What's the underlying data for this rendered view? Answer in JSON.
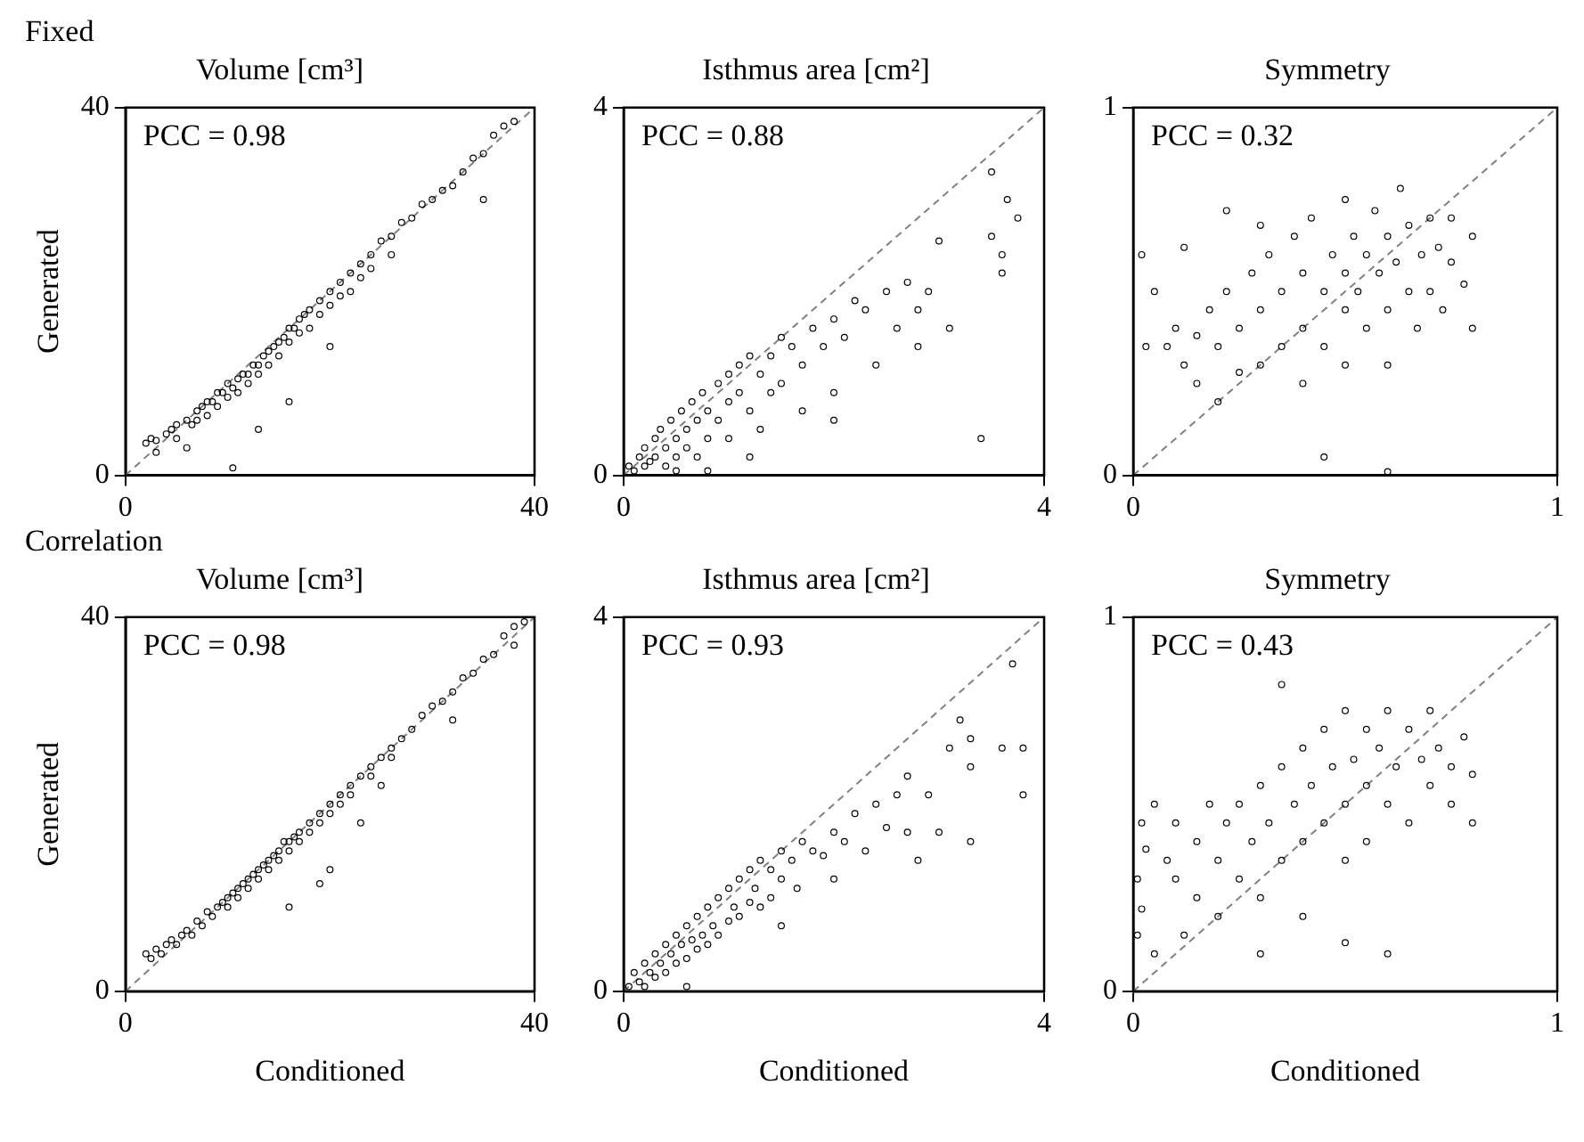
{
  "chart_data": [
    {
      "type": "scatter",
      "subtitle": "Fixed",
      "title": "Volume [cm³]",
      "ylabel": "Generated",
      "xlim": [
        0,
        40
      ],
      "ylim": [
        0,
        40
      ],
      "xticks": [
        0,
        40
      ],
      "yticks": [
        0,
        40
      ],
      "marker": "circle",
      "annotations": [
        "PCC = 0.98"
      ],
      "series": [
        {
          "color": "#000000",
          "x": [
            2,
            2.5,
            3,
            3,
            4,
            4.5,
            5,
            5,
            6,
            6.5,
            7,
            7,
            7.5,
            8,
            8,
            8.5,
            9,
            9,
            9.5,
            10,
            10,
            10.5,
            11,
            11,
            11.5,
            12,
            12,
            12.5,
            13,
            13,
            13.5,
            14,
            14,
            14.5,
            15,
            15,
            15.5,
            16,
            16,
            16.5,
            17,
            17,
            17.5,
            18,
            18,
            19,
            19,
            20,
            20,
            21,
            21,
            22,
            22,
            23,
            23,
            24,
            24,
            25,
            26,
            26,
            27,
            28,
            29,
            30,
            31,
            32,
            33,
            34,
            35,
            36,
            37,
            38,
            35,
            13,
            10.5,
            6,
            16,
            20
          ],
          "values": [
            3.5,
            4,
            3.8,
            2.5,
            4.5,
            5,
            5.5,
            4,
            6,
            5.5,
            7,
            6,
            7.5,
            8,
            6.5,
            8,
            9,
            7.5,
            9,
            10,
            8.5,
            9.5,
            10.5,
            9,
            11,
            11,
            10,
            12,
            12,
            11,
            13,
            13.5,
            12,
            14,
            14.5,
            13,
            15,
            16,
            14.5,
            16,
            17,
            15.5,
            17.5,
            18,
            16,
            19,
            17.5,
            20,
            18.5,
            21,
            19.5,
            22,
            20,
            23,
            21.5,
            24,
            22.5,
            25.5,
            26,
            24,
            27.5,
            28,
            29.5,
            30,
            31,
            31.5,
            33,
            34.5,
            35,
            37,
            38,
            38.5,
            30,
            5,
            0.8,
            3,
            8,
            14
          ]
        },
        {
          "type": "line",
          "color": "#808080",
          "marker": "none",
          "line_style": "dashed",
          "x": [
            0,
            40
          ],
          "values": [
            0,
            40
          ]
        }
      ]
    },
    {
      "type": "scatter",
      "title": "Isthmus area [cm²]",
      "xlim": [
        0,
        4
      ],
      "ylim": [
        0,
        4
      ],
      "xticks": [
        0,
        4
      ],
      "yticks": [
        0,
        4
      ],
      "marker": "circle",
      "annotations": [
        "PCC = 0.88"
      ],
      "series": [
        {
          "color": "#000000",
          "x": [
            0.05,
            0.1,
            0.15,
            0.2,
            0.2,
            0.25,
            0.3,
            0.3,
            0.35,
            0.4,
            0.4,
            0.45,
            0.5,
            0.5,
            0.55,
            0.6,
            0.6,
            0.65,
            0.7,
            0.7,
            0.75,
            0.8,
            0.8,
            0.9,
            0.9,
            1.0,
            1.0,
            1.0,
            1.1,
            1.1,
            1.2,
            1.2,
            1.3,
            1.3,
            1.4,
            1.4,
            1.5,
            1.5,
            1.6,
            1.7,
            1.7,
            1.8,
            1.9,
            2.0,
            2.0,
            2.1,
            2.2,
            2.3,
            2.4,
            2.5,
            2.6,
            2.7,
            2.8,
            2.8,
            2.9,
            3.1,
            3.0,
            3.5,
            3.65,
            3.75,
            3.5,
            3.6,
            3.6,
            3.4,
            1.2,
            0.8,
            0.5,
            2.0
          ],
          "values": [
            0.1,
            0.05,
            0.2,
            0.1,
            0.3,
            0.15,
            0.4,
            0.2,
            0.5,
            0.3,
            0.1,
            0.6,
            0.4,
            0.2,
            0.7,
            0.5,
            0.3,
            0.8,
            0.6,
            0.2,
            0.9,
            0.7,
            0.4,
            1.0,
            0.6,
            1.1,
            0.8,
            0.4,
            1.2,
            0.9,
            1.3,
            0.7,
            1.1,
            0.5,
            1.3,
            0.9,
            1.5,
            1.0,
            1.4,
            1.2,
            0.7,
            1.6,
            1.4,
            1.7,
            0.9,
            1.5,
            1.9,
            1.8,
            1.2,
            2.0,
            1.6,
            2.1,
            1.8,
            1.4,
            2.0,
            1.6,
            2.55,
            3.3,
            3.0,
            2.8,
            2.6,
            2.4,
            2.2,
            0.4,
            0.2,
            0.05,
            0.05,
            0.6
          ]
        },
        {
          "type": "line",
          "color": "#808080",
          "marker": "none",
          "line_style": "dashed",
          "x": [
            0,
            4
          ],
          "values": [
            0,
            4
          ]
        }
      ]
    },
    {
      "type": "scatter",
      "title": "Symmetry",
      "xlim": [
        0,
        1
      ],
      "ylim": [
        0,
        1
      ],
      "xticks": [
        0,
        1
      ],
      "yticks": [
        0,
        1
      ],
      "marker": "circle",
      "annotations": [
        "PCC = 0.32"
      ],
      "series": [
        {
          "color": "#000000",
          "x": [
            0.02,
            0.03,
            0.05,
            0.08,
            0.1,
            0.12,
            0.12,
            0.15,
            0.15,
            0.18,
            0.2,
            0.2,
            0.22,
            0.25,
            0.25,
            0.28,
            0.3,
            0.3,
            0.32,
            0.35,
            0.35,
            0.38,
            0.4,
            0.4,
            0.4,
            0.42,
            0.45,
            0.45,
            0.47,
            0.5,
            0.5,
            0.5,
            0.5,
            0.52,
            0.53,
            0.55,
            0.55,
            0.57,
            0.58,
            0.6,
            0.6,
            0.6,
            0.62,
            0.63,
            0.65,
            0.65,
            0.67,
            0.68,
            0.7,
            0.7,
            0.72,
            0.73,
            0.75,
            0.75,
            0.78,
            0.8,
            0.8,
            0.45,
            0.6,
            0.3,
            0.22
          ],
          "values": [
            0.6,
            0.35,
            0.5,
            0.35,
            0.4,
            0.3,
            0.62,
            0.38,
            0.25,
            0.45,
            0.35,
            0.2,
            0.5,
            0.4,
            0.28,
            0.55,
            0.45,
            0.3,
            0.6,
            0.5,
            0.35,
            0.65,
            0.55,
            0.4,
            0.25,
            0.7,
            0.5,
            0.35,
            0.6,
            0.75,
            0.55,
            0.45,
            0.3,
            0.65,
            0.5,
            0.4,
            0.6,
            0.72,
            0.55,
            0.45,
            0.65,
            0.3,
            0.58,
            0.78,
            0.5,
            0.68,
            0.4,
            0.6,
            0.7,
            0.5,
            0.62,
            0.45,
            0.58,
            0.7,
            0.52,
            0.65,
            0.4,
            0.05,
            0.01,
            0.68,
            0.72
          ]
        },
        {
          "type": "line",
          "color": "#808080",
          "marker": "none",
          "line_style": "dashed",
          "x": [
            0,
            1
          ],
          "values": [
            0,
            1
          ]
        }
      ]
    },
    {
      "type": "scatter",
      "subtitle": "Correlation",
      "title": "Volume [cm³]",
      "xlabel": "Conditioned",
      "ylabel": "Generated",
      "xlim": [
        0,
        40
      ],
      "ylim": [
        0,
        40
      ],
      "xticks": [
        0,
        40
      ],
      "yticks": [
        0,
        40
      ],
      "marker": "circle",
      "annotations": [
        "PCC = 0.98"
      ],
      "series": [
        {
          "color": "#000000",
          "x": [
            2,
            2.5,
            3,
            3.5,
            4,
            4.5,
            5,
            5.5,
            6,
            6.5,
            7,
            7.5,
            8,
            8.5,
            9,
            9.5,
            10,
            10,
            10.5,
            11,
            11,
            11.5,
            12,
            12,
            12.5,
            13,
            13,
            13.5,
            14,
            14,
            14.5,
            15,
            15,
            15.5,
            16,
            16,
            16.5,
            17,
            17,
            18,
            18,
            19,
            19,
            20,
            20,
            21,
            21,
            22,
            22,
            23,
            24,
            24,
            25,
            26,
            26,
            27,
            28,
            29,
            30,
            31,
            32,
            33,
            34,
            35,
            36,
            37,
            38,
            39,
            38,
            16,
            19,
            20,
            23,
            25,
            32
          ],
          "values": [
            4,
            3.5,
            4.5,
            4,
            5,
            5.5,
            5,
            6,
            6.5,
            6,
            7.5,
            7,
            8.5,
            8,
            9,
            9.5,
            10,
            9,
            10.5,
            11,
            10,
            11.5,
            12,
            11,
            12.5,
            13,
            12,
            13.5,
            14,
            13,
            14.5,
            15,
            14,
            16,
            16,
            15,
            16.5,
            17,
            16,
            18,
            17,
            19,
            18,
            20,
            19,
            21,
            20,
            22,
            21,
            23,
            24,
            23,
            25,
            26,
            25,
            27,
            28,
            29.5,
            30.5,
            31,
            32,
            33.5,
            34,
            35.5,
            36,
            38,
            39,
            39.5,
            37,
            9,
            11.5,
            13,
            18,
            22,
            29
          ]
        },
        {
          "type": "line",
          "color": "#808080",
          "marker": "none",
          "line_style": "dashed",
          "x": [
            0,
            40
          ],
          "values": [
            0,
            40
          ]
        }
      ]
    },
    {
      "type": "scatter",
      "title": "Isthmus area [cm²]",
      "xlabel": "Conditioned",
      "xlim": [
        0,
        4
      ],
      "ylim": [
        0,
        4
      ],
      "xticks": [
        0,
        4
      ],
      "yticks": [
        0,
        4
      ],
      "marker": "circle",
      "annotations": [
        "PCC = 0.93"
      ],
      "series": [
        {
          "color": "#000000",
          "x": [
            0.05,
            0.1,
            0.15,
            0.2,
            0.2,
            0.25,
            0.3,
            0.3,
            0.35,
            0.4,
            0.4,
            0.45,
            0.5,
            0.5,
            0.55,
            0.6,
            0.6,
            0.65,
            0.7,
            0.7,
            0.75,
            0.8,
            0.8,
            0.85,
            0.9,
            0.9,
            1.0,
            1.0,
            1.05,
            1.1,
            1.1,
            1.2,
            1.2,
            1.25,
            1.3,
            1.3,
            1.4,
            1.4,
            1.5,
            1.5,
            1.6,
            1.65,
            1.7,
            1.8,
            1.9,
            2.0,
            2.0,
            2.1,
            2.2,
            2.3,
            2.4,
            2.5,
            2.6,
            2.7,
            2.7,
            2.8,
            2.9,
            3.0,
            3.1,
            3.2,
            3.3,
            3.3,
            3.6,
            3.8,
            3.8,
            3.7,
            3.3,
            1.5,
            0.6
          ],
          "values": [
            0.05,
            0.2,
            0.1,
            0.3,
            0.05,
            0.2,
            0.4,
            0.15,
            0.3,
            0.5,
            0.2,
            0.4,
            0.6,
            0.3,
            0.5,
            0.7,
            0.35,
            0.55,
            0.8,
            0.45,
            0.6,
            0.9,
            0.5,
            0.7,
            1.0,
            0.6,
            1.1,
            0.75,
            0.9,
            1.2,
            0.8,
            1.3,
            0.95,
            1.1,
            1.4,
            0.9,
            1.3,
            1.0,
            1.5,
            1.2,
            1.4,
            1.1,
            1.6,
            1.5,
            1.45,
            1.7,
            1.2,
            1.6,
            1.9,
            1.5,
            2.0,
            1.75,
            2.1,
            1.7,
            2.3,
            1.4,
            2.1,
            1.7,
            2.6,
            2.9,
            2.7,
            2.4,
            2.6,
            2.6,
            2.1,
            3.5,
            1.6,
            0.7,
            0.05
          ]
        },
        {
          "type": "line",
          "color": "#808080",
          "marker": "none",
          "line_style": "dashed",
          "x": [
            0,
            4
          ],
          "values": [
            0,
            4
          ]
        }
      ]
    },
    {
      "type": "scatter",
      "title": "Symmetry",
      "xlabel": "Conditioned",
      "xlim": [
        0,
        1
      ],
      "ylim": [
        0,
        1
      ],
      "xticks": [
        0,
        1
      ],
      "yticks": [
        0,
        1
      ],
      "marker": "circle",
      "annotations": [
        "PCC = 0.43"
      ],
      "series": [
        {
          "color": "#000000",
          "x": [
            0.01,
            0.01,
            0.02,
            0.02,
            0.03,
            0.05,
            0.05,
            0.08,
            0.1,
            0.1,
            0.12,
            0.15,
            0.15,
            0.18,
            0.2,
            0.2,
            0.22,
            0.25,
            0.25,
            0.28,
            0.3,
            0.3,
            0.32,
            0.35,
            0.35,
            0.38,
            0.4,
            0.4,
            0.4,
            0.42,
            0.45,
            0.45,
            0.47,
            0.5,
            0.5,
            0.5,
            0.52,
            0.55,
            0.55,
            0.55,
            0.58,
            0.6,
            0.6,
            0.62,
            0.65,
            0.65,
            0.68,
            0.7,
            0.7,
            0.72,
            0.75,
            0.75,
            0.78,
            0.8,
            0.8,
            0.35,
            0.5,
            0.6,
            0.3
          ],
          "values": [
            0.3,
            0.15,
            0.45,
            0.22,
            0.38,
            0.1,
            0.5,
            0.35,
            0.3,
            0.45,
            0.15,
            0.4,
            0.25,
            0.5,
            0.35,
            0.2,
            0.45,
            0.3,
            0.5,
            0.4,
            0.55,
            0.25,
            0.45,
            0.6,
            0.35,
            0.5,
            0.65,
            0.4,
            0.2,
            0.55,
            0.7,
            0.45,
            0.6,
            0.75,
            0.5,
            0.35,
            0.62,
            0.55,
            0.7,
            0.4,
            0.65,
            0.75,
            0.5,
            0.6,
            0.7,
            0.45,
            0.62,
            0.55,
            0.75,
            0.65,
            0.5,
            0.6,
            0.68,
            0.58,
            0.45,
            0.82,
            0.13,
            0.1,
            0.1
          ]
        },
        {
          "type": "line",
          "color": "#808080",
          "marker": "none",
          "line_style": "dashed",
          "x": [
            0,
            1
          ],
          "values": [
            0,
            1
          ]
        }
      ]
    }
  ]
}
